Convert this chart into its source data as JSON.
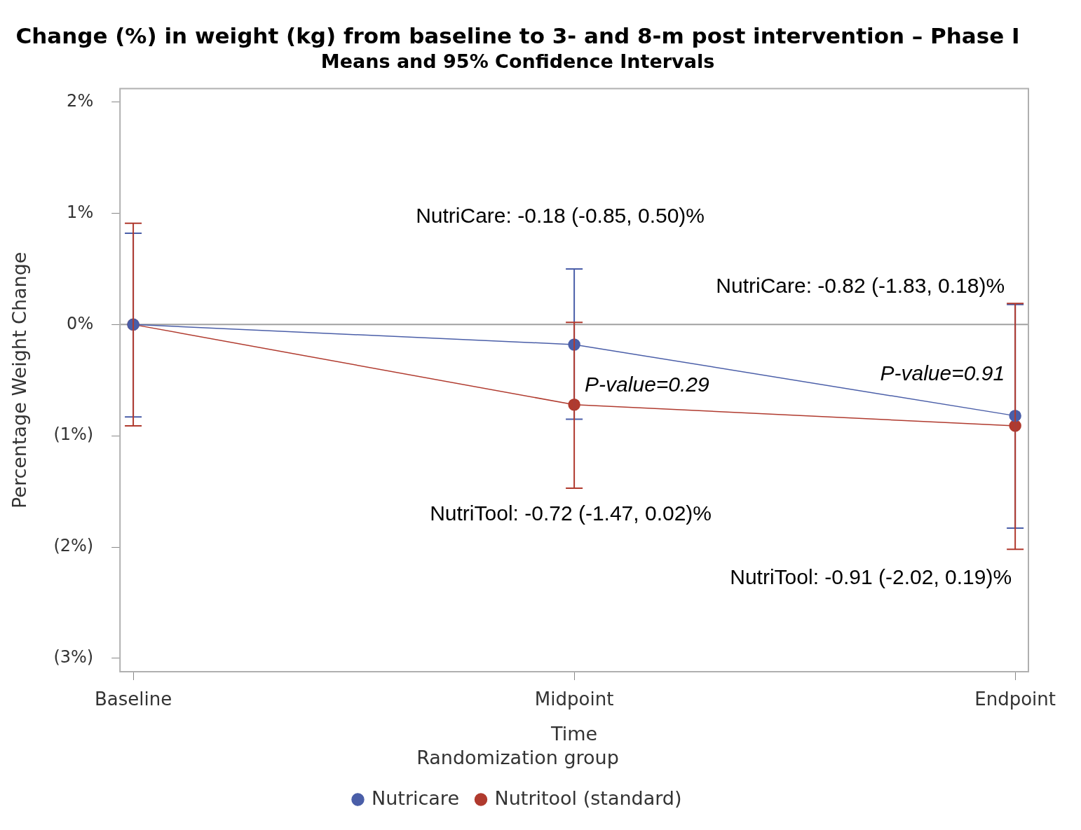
{
  "chart_data": {
    "type": "line",
    "title": "Change (%) in weight (kg) from baseline to 3- and 8-m post intervention – Phase I",
    "subtitle": "Means and 95% Confidence Intervals",
    "xlabel": "Time",
    "ylabel": "Percentage Weight Change",
    "legend_title": "Randomization group",
    "categories": [
      "Baseline",
      "Midpoint",
      "Endpoint"
    ],
    "series": [
      {
        "name": "Nutricare",
        "color": "#4a5ea8",
        "values": [
          0,
          -0.18,
          -0.82
        ],
        "errors": [
          [
            -0.83,
            0.82
          ],
          [
            -0.85,
            0.5
          ],
          [
            -1.83,
            0.18
          ]
        ]
      },
      {
        "name": "Nutritool (standard)",
        "color": "#b03a2e",
        "values": [
          0,
          -0.72,
          -0.91
        ],
        "errors": [
          [
            -0.91,
            0.91
          ],
          [
            -1.47,
            0.02
          ],
          [
            -2.02,
            0.19
          ]
        ]
      }
    ],
    "ylim": [
      -3.12,
      2.12
    ],
    "yticks": [
      {
        "value": 2,
        "label": "2%"
      },
      {
        "value": 1,
        "label": "1%"
      },
      {
        "value": 0,
        "label": "0%"
      },
      {
        "value": -1,
        "label": "(1%)"
      },
      {
        "value": -2,
        "label": "(2%)"
      },
      {
        "value": -3,
        "label": "(3%)"
      }
    ],
    "ref_lines": [
      {
        "axis": "y",
        "value": 0,
        "color": "#a0a0a0"
      }
    ],
    "annotations": [
      "NutriCare: -0.18 (-0.85, 0.50)%",
      "NutriCare: -0.82 (-1.83, 0.18)%",
      {
        "text": "P-value=0.29",
        "x": "Midpoint",
        "y": -0.55
      },
      {
        "text": "P-value=0.91",
        "x": "Endpoint",
        "y": -0.45
      },
      "NutriTool: -0.72 (-1.47, 0.02)%",
      "NutriTool: -0.91 (-2.02, 0.19)%"
    ],
    "marker": "circle",
    "line_style": "solid",
    "grid": false,
    "legend": "bottom"
  }
}
